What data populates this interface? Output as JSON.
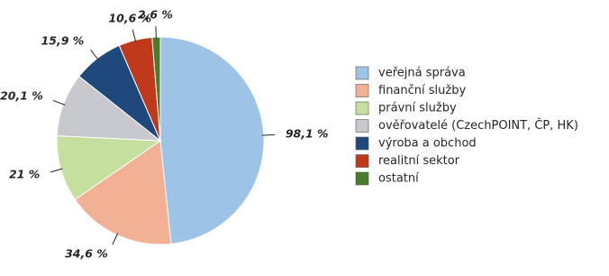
{
  "chart_data": {
    "type": "pie",
    "categories": [
      "veřejná správa",
      "finanční služby",
      "právní služby",
      "ověřovatelé (CzechPOINT, ČP, HK)",
      "výroba a obchod",
      "realitní sektor",
      "ostatní"
    ],
    "values": [
      98.1,
      34.6,
      21,
      20.1,
      15.9,
      10.6,
      2.6
    ],
    "value_labels": [
      "98,1 %",
      "34,6 %",
      "21 %",
      "20,1 %",
      "15,9 %",
      "10,6 %",
      "2,6 %"
    ],
    "colors": [
      "#9dc3e6",
      "#f2b095",
      "#c4df9e",
      "#c8c8cf",
      "#1f497d",
      "#c0391b",
      "#4a7c2b"
    ],
    "legend": "right"
  }
}
